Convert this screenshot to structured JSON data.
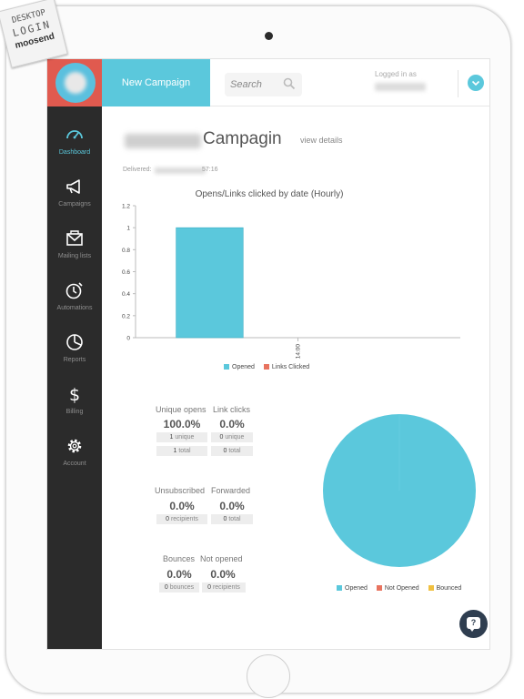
{
  "stamp": {
    "line1": "DESKTOP",
    "line2": "LOGIN",
    "line3": "moosend"
  },
  "header": {
    "new_campaign_label": "New Campaign",
    "search_placeholder": "Search",
    "logged_in_label": "Logged in as"
  },
  "sidebar": {
    "items": [
      {
        "label": "Dashboard",
        "icon": "gauge-icon",
        "active": true
      },
      {
        "label": "Campaigns",
        "icon": "megaphone-icon",
        "active": false
      },
      {
        "label": "Mailing lists",
        "icon": "envelope-icon",
        "active": false
      },
      {
        "label": "Automations",
        "icon": "alarm-clock-icon",
        "active": false
      },
      {
        "label": "Reports",
        "icon": "pie-icon",
        "active": false
      },
      {
        "label": "Billing",
        "icon": "dollar-icon",
        "active": false
      },
      {
        "label": "Account",
        "icon": "gear-icon",
        "active": false
      }
    ]
  },
  "main": {
    "title": "Campagin",
    "view_details": "view details",
    "delivered_label": "Delivered:",
    "delivered_time": "57:16"
  },
  "chart_data": [
    {
      "type": "bar",
      "title": "Opens/Links clicked by date (Hourly)",
      "categories": [
        "14:00"
      ],
      "series": [
        {
          "name": "Opened",
          "values": [
            1
          ]
        },
        {
          "name": "Links Clicked",
          "values": [
            0
          ]
        }
      ],
      "ylim": [
        0,
        1.2
      ],
      "yticks": [
        "0",
        "0.2",
        "0.4",
        "0.6",
        "0.8",
        "1",
        "1.2"
      ],
      "legend_position": "bottom"
    },
    {
      "type": "pie",
      "labels": [
        "Opened",
        "Not Opened",
        "Bounced"
      ],
      "values": [
        100,
        0,
        0
      ],
      "legend_position": "bottom"
    }
  ],
  "stats": {
    "unique_opens": {
      "label": "Unique opens",
      "pct": "100.0%",
      "unique": "1",
      "unique_label": "unique",
      "total": "1",
      "total_label": "total"
    },
    "link_clicks": {
      "label": "Link clicks",
      "pct": "0.0%",
      "unique": "0",
      "unique_label": "unique",
      "total": "0",
      "total_label": "total"
    },
    "unsubscribed": {
      "label": "Unsubscribed",
      "pct": "0.0%",
      "count": "0",
      "count_label": "recipients"
    },
    "forwarded": {
      "label": "Forwarded",
      "pct": "0.0%",
      "count": "0",
      "count_label": "total"
    },
    "bounces": {
      "label": "Bounces",
      "pct": "0.0%",
      "count": "0",
      "count_label": "bounces"
    },
    "not_opened": {
      "label": "Not opened",
      "pct": "0.0%",
      "count": "0",
      "count_label": "recipients"
    }
  },
  "help": {
    "label": "?"
  },
  "colors": {
    "accent": "#5bc8dc",
    "logo_bg": "#e05a4f",
    "sidebar_bg": "#2b2b2b",
    "links_clicked": "#e8735f",
    "bounced": "#f0c040",
    "help_bg": "#2f3e50"
  }
}
